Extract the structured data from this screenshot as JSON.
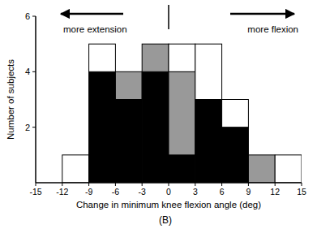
{
  "chart_data": {
    "type": "histogram",
    "stacked": true,
    "x_label": "Change in minimum knee flexion angle (deg)",
    "y_label": "Number of subjects",
    "caption": "(B)",
    "bins": [
      -15,
      -12,
      -9,
      -6,
      -3,
      0,
      3,
      6,
      9,
      12,
      15
    ],
    "series": [
      {
        "color": "#000000",
        "values": [
          0,
          0,
          4,
          3,
          4,
          1,
          3,
          2,
          0,
          0
        ]
      },
      {
        "color": "#999999",
        "values": [
          0,
          0,
          0,
          1,
          1,
          3,
          0,
          0,
          1,
          0
        ]
      },
      {
        "color": "#ffffff",
        "values": [
          0,
          1,
          1,
          0,
          0,
          1,
          2,
          1,
          0,
          1
        ]
      }
    ],
    "xlim": [
      -15,
      15
    ],
    "ylim": [
      0,
      6
    ],
    "xticks": [
      -15,
      -12,
      -9,
      -6,
      -3,
      0,
      3,
      6,
      9,
      12,
      15
    ],
    "yticks": [
      2,
      4,
      6
    ],
    "reference_x": 0,
    "annotations": [
      {
        "text": "more extension",
        "direction": "left"
      },
      {
        "text": "more flexion",
        "direction": "right"
      }
    ]
  }
}
